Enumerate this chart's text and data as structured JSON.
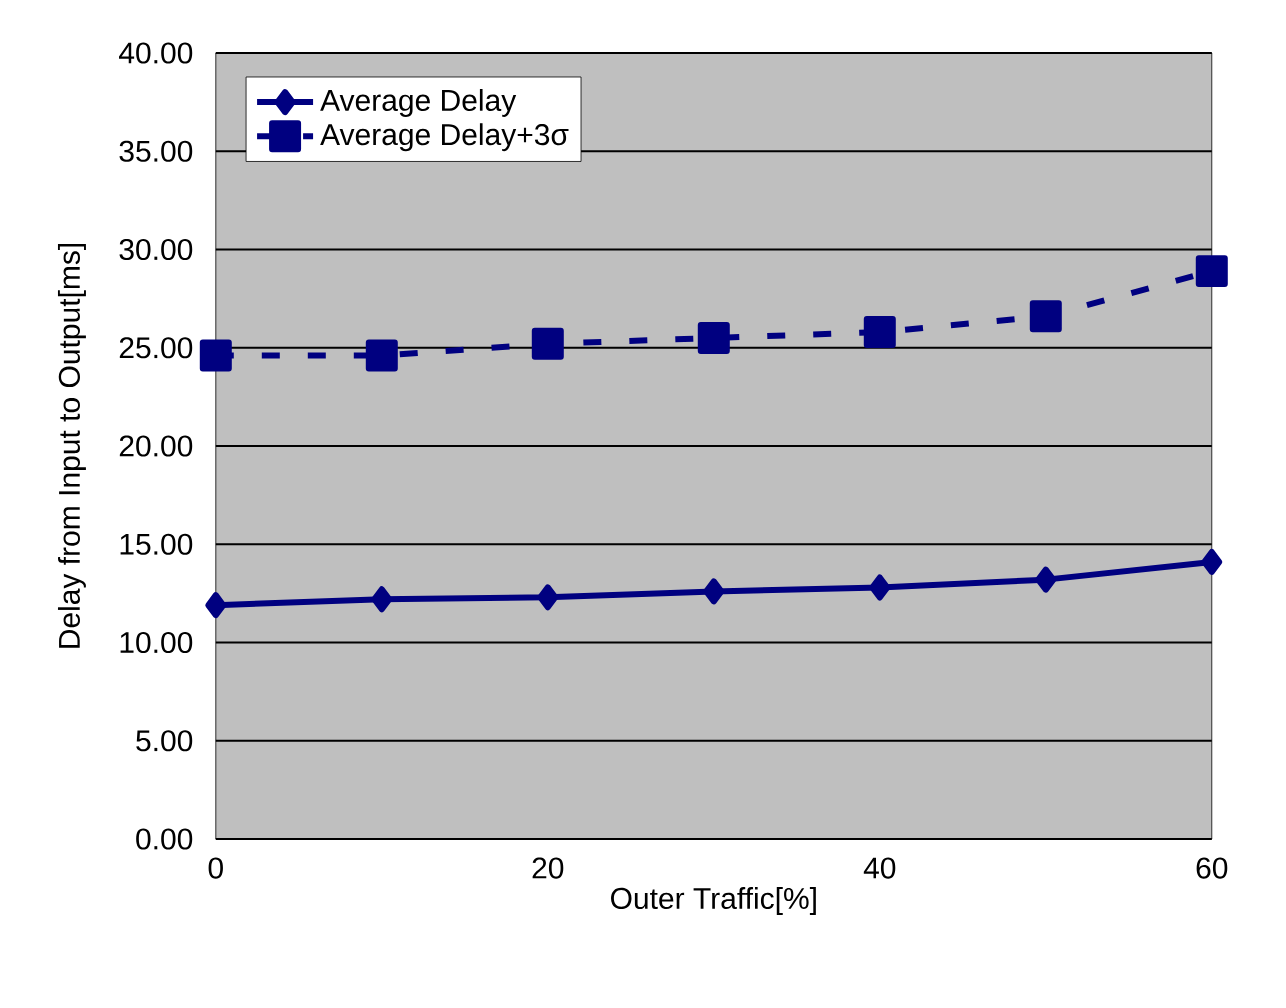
{
  "chart_data": {
    "type": "line",
    "xlabel": "Outer Traffic[%]",
    "ylabel": "Delay from Input to Output[ms]",
    "x": [
      0,
      10,
      20,
      30,
      40,
      50,
      60
    ],
    "series": [
      {
        "name": "Average Delay",
        "color": "#000080",
        "marker": "diamond",
        "line_style": "solid",
        "values": [
          11.9,
          12.2,
          12.3,
          12.6,
          12.8,
          13.2,
          14.1
        ]
      },
      {
        "name": "Average Delay+3σ",
        "color": "#000080",
        "marker": "square",
        "line_style": "dashed",
        "values": [
          24.6,
          24.6,
          25.2,
          25.5,
          25.8,
          26.6,
          28.9
        ]
      }
    ],
    "xlim": [
      0,
      60
    ],
    "xticks": [
      0,
      20,
      40,
      60
    ],
    "ylim": [
      0,
      40
    ],
    "yticks": [
      {
        "value": 0,
        "label": "0.00"
      },
      {
        "value": 5,
        "label": "5.00"
      },
      {
        "value": 10,
        "label": "10.00"
      },
      {
        "value": 15,
        "label": "15.00"
      },
      {
        "value": 20,
        "label": "20.00"
      },
      {
        "value": 25,
        "label": "25.00"
      },
      {
        "value": 30,
        "label": "30.00"
      },
      {
        "value": 35,
        "label": "35.00"
      },
      {
        "value": 40,
        "label": "40.00"
      }
    ],
    "grid": "y",
    "legend": "top left"
  }
}
